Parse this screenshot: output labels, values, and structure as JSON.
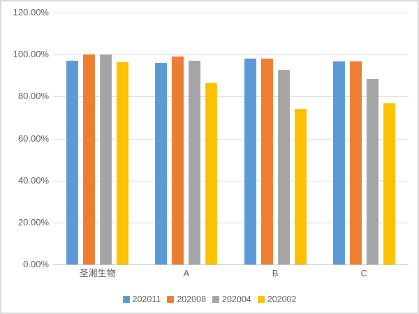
{
  "chart_data": {
    "type": "bar",
    "title": "",
    "xlabel": "",
    "ylabel": "",
    "categories": [
      "圣湘生物",
      "A",
      "B",
      "C"
    ],
    "series": [
      {
        "name": "202011",
        "color": "#5B9BD5",
        "values": [
          97.0,
          96.0,
          98.0,
          96.8
        ]
      },
      {
        "name": "202008",
        "color": "#ED7D31",
        "values": [
          100.0,
          99.2,
          98.0,
          96.8
        ]
      },
      {
        "name": "202004",
        "color": "#A5A5A5",
        "values": [
          100.0,
          97.0,
          92.7,
          88.4
        ]
      },
      {
        "name": "202002",
        "color": "#FFC000",
        "values": [
          96.4,
          86.5,
          74.0,
          76.7
        ]
      }
    ],
    "ylim": [
      0,
      120
    ],
    "ytick_step": 20,
    "yticks": [
      "0.00%",
      "20.00%",
      "40.00%",
      "60.00%",
      "80.00%",
      "100.00%",
      "120.00%"
    ],
    "grid": true,
    "legend_position": "bottom",
    "colors": {
      "gridline": "#d9d9d9",
      "axis_line": "#bfbfbf",
      "tick_text": "#595959",
      "frame_border": "#d9d9d9",
      "background": "#ffffff"
    }
  }
}
